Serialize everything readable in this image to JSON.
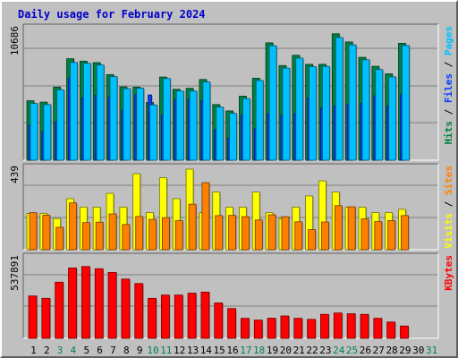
{
  "title": "Daily usage for February 2024",
  "colors": {
    "background": "#c0c0c0",
    "title": "#0000cc",
    "hits": "#008040",
    "files": "#0040ff",
    "pages": "#00c0ff",
    "visits": "#ffff00",
    "sites": "#ff8000",
    "kbytes": "#ff0000",
    "weekend_day": "#00805c"
  },
  "chart_data": {
    "type": "bar",
    "categories": [
      "1",
      "2",
      "3",
      "4",
      "5",
      "6",
      "7",
      "8",
      "9",
      "10",
      "11",
      "12",
      "13",
      "14",
      "15",
      "16",
      "17",
      "18",
      "19",
      "20",
      "21",
      "22",
      "23",
      "24",
      "25",
      "26",
      "27",
      "28",
      "29",
      "30",
      "31"
    ],
    "weekend_days": [
      "3",
      "4",
      "10",
      "11",
      "17",
      "18",
      "24",
      "25",
      "31"
    ],
    "grid": true,
    "panels": [
      {
        "id": "hits_files_pages",
        "max_label": "10686",
        "ylim": [
          0,
          10686
        ],
        "legend": [
          {
            "text": "Hits",
            "color": "#008040"
          },
          {
            "text": " / ",
            "color": "#000000"
          },
          {
            "text": "Files",
            "color": "#0040ff"
          },
          {
            "text": " / ",
            "color": "#000000"
          },
          {
            "text": "Pages",
            "color": "#00c0ff"
          }
        ],
        "series": [
          {
            "name": "Hits",
            "color": "#008040",
            "values": [
              4860,
              4750,
              5980,
              8300,
              8100,
              7980,
              7000,
              6000,
              5980,
              4720,
              6800,
              5800,
              5880,
              6600,
              4550,
              4030,
              5240,
              6700,
              9600,
              7740,
              8580,
              7840,
              7840,
              10340,
              9670,
              8410,
              7680,
              7060,
              9560,
              null,
              null
            ]
          },
          {
            "name": "Files",
            "color": "#0040ff",
            "values": [
              2870,
              2320,
              3120,
              6720,
              5100,
              5310,
              5140,
              4100,
              5360,
              5340,
              3700,
              4960,
              4940,
              4860,
              2490,
              1790,
              3690,
              2580,
              3820,
              3670,
              3800,
              5090,
              4260,
              4450,
              4590,
              4660,
              5260,
              4420,
              5370,
              null,
              null
            ]
          },
          {
            "name": "Pages",
            "color": "#00c0ff",
            "values": [
              4640,
              4550,
              5760,
              7990,
              7920,
              7790,
              6840,
              5850,
              5890,
              4520,
              6680,
              5650,
              5660,
              6400,
              4340,
              3830,
              5040,
              6520,
              9360,
              7530,
              8350,
              7650,
              7670,
              10030,
              9430,
              8210,
              7420,
              6810,
              9380,
              null,
              null
            ]
          }
        ]
      },
      {
        "id": "visits_sites",
        "max_label": "439",
        "ylim": [
          0,
          439
        ],
        "legend": [
          {
            "text": "Visits",
            "color": "#ffff00"
          },
          {
            "text": " / ",
            "color": "#000000"
          },
          {
            "text": "Sites",
            "color": "#ff8000"
          }
        ],
        "series": [
          {
            "name": "Visits",
            "color": "#ffff00",
            "values": [
              197,
              197,
              170,
              278,
              232,
              232,
              307,
              232,
              414,
              202,
              392,
              278,
              439,
              202,
              314,
              232,
              232,
              314,
              202,
              170,
              232,
              293,
              375,
              314,
              232,
              232,
              202,
              202,
              220,
              null,
              null
            ]
          },
          {
            "name": "Sites",
            "color": "#ff8000",
            "values": [
              202,
              188,
              122,
              255,
              148,
              150,
              195,
              137,
              181,
              165,
              175,
              158,
              248,
              365,
              186,
              187,
              180,
              162,
              190,
              180,
              152,
              110,
              151,
              240,
              234,
              168,
              153,
              159,
              186,
              null,
              null
            ]
          }
        ]
      },
      {
        "id": "kbytes",
        "max_label": "537891",
        "ylim": [
          0,
          537891
        ],
        "legend": [
          {
            "text": "KBytes",
            "color": "#ff0000"
          }
        ],
        "series": [
          {
            "name": "KBytes",
            "color": "#ff0000",
            "values": [
              286000,
              270000,
              379000,
              475000,
              485000,
              470000,
              445000,
              400000,
              370000,
              270000,
              292000,
              292000,
              305000,
              312000,
              239000,
              201000,
              135000,
              123000,
              136000,
              151000,
              135000,
              128000,
              162000,
              171000,
              166000,
              162000,
              135000,
              110000,
              83000,
              null,
              null
            ]
          }
        ]
      }
    ]
  }
}
